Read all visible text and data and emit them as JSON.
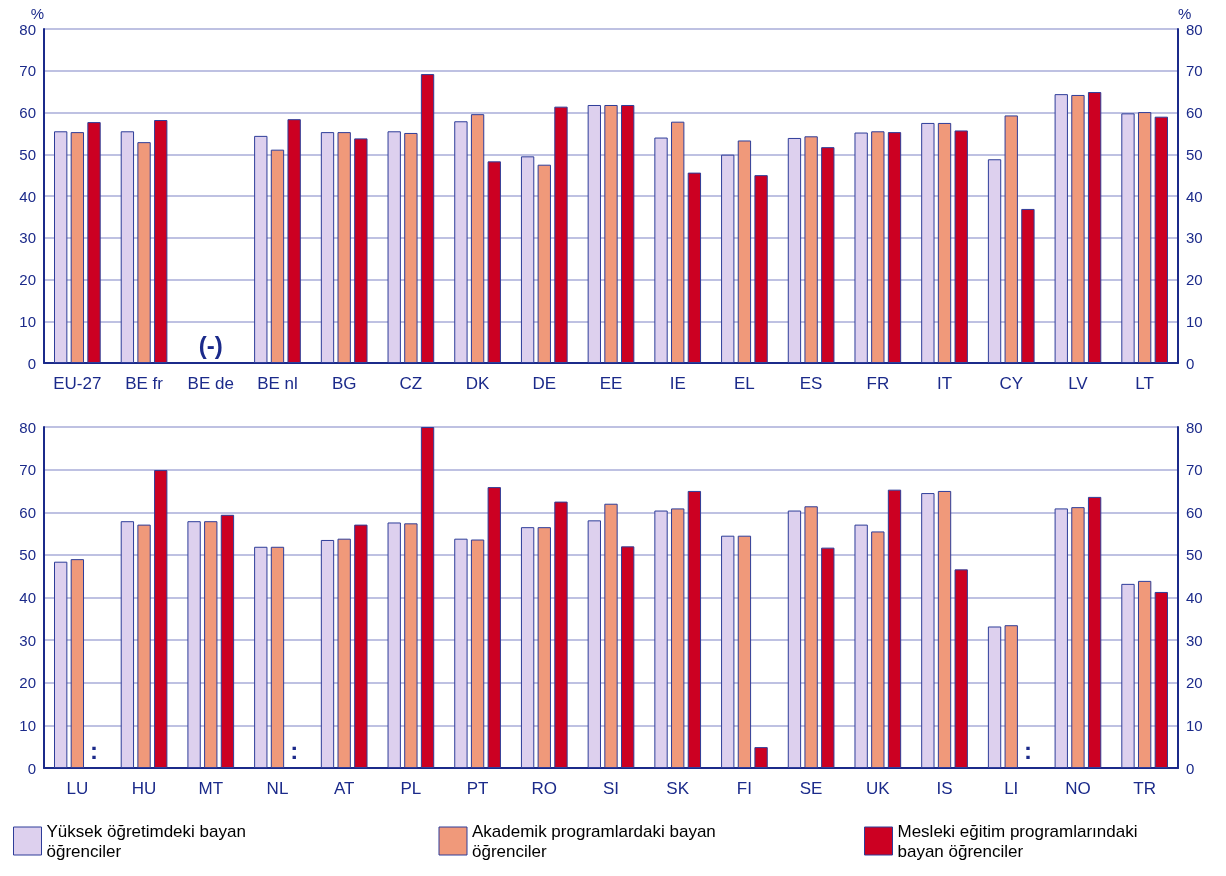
{
  "chart_data": [
    {
      "type": "bar",
      "ylabel": "%",
      "y2label": "%",
      "categories": [
        "EU-27",
        "BE fr",
        "BE de",
        "BE nl",
        "BG",
        "CZ",
        "DK",
        "DE",
        "EE",
        "IE",
        "EL",
        "ES",
        "FR",
        "IT",
        "CY",
        "LV",
        "LT"
      ],
      "series": [
        {
          "color": "#ddd0ee",
          "values": [
            55.5,
            55.5,
            null,
            54.4,
            55.3,
            55.5,
            57.9,
            49.5,
            61.8,
            54.0,
            49.9,
            53.9,
            55.2,
            57.5,
            48.8,
            64.4,
            59.8
          ]
        },
        {
          "color": "#f0997a",
          "values": [
            55.3,
            52.9,
            null,
            51.1,
            55.3,
            55.1,
            59.6,
            47.5,
            61.8,
            57.8,
            53.3,
            54.3,
            55.5,
            57.5,
            59.3,
            64.2,
            60.1
          ]
        },
        {
          "color": "#cc0022",
          "values": [
            57.7,
            58.2,
            null,
            58.4,
            53.8,
            69.2,
            48.3,
            61.4,
            61.8,
            45.6,
            45.0,
            51.7,
            55.3,
            55.7,
            36.9,
            64.9,
            59.0
          ]
        }
      ],
      "ylim": [
        0,
        80
      ],
      "yticks": [
        0,
        10,
        20,
        30,
        40,
        50,
        60,
        70,
        80
      ],
      "y2lim": [
        0,
        80
      ],
      "y2ticks": [
        0,
        10,
        20,
        30,
        40,
        50,
        60,
        70,
        80
      ],
      "grid": "y",
      "legend": false,
      "annotations": [
        "(-)"
      ]
    },
    {
      "type": "bar",
      "categories": [
        "LU",
        "HU",
        "MT",
        "NL",
        "AT",
        "PL",
        "PT",
        "RO",
        "SI",
        "SK",
        "FI",
        "SE",
        "UK",
        "IS",
        "LI",
        "NO",
        "TR"
      ],
      "series": [
        {
          "name": "Yüksek öğretimdeki bayan öğrenciler",
          "color": "#ddd0ee",
          "values": [
            48.4,
            57.9,
            57.9,
            51.9,
            53.5,
            57.6,
            53.8,
            56.5,
            58.1,
            60.4,
            54.5,
            60.4,
            57.1,
            64.5,
            33.2,
            60.9,
            43.2
          ]
        },
        {
          "name": "Akademik programlardaki bayan öğrenciler",
          "color": "#f0997a",
          "values": [
            49.0,
            57.1,
            57.9,
            51.9,
            53.8,
            57.4,
            53.6,
            56.5,
            62.0,
            60.9,
            54.5,
            61.4,
            55.5,
            65.0,
            33.5,
            61.2,
            43.9
          ]
        },
        {
          "name": "Mesleki eğitim programlarındaki bayan öğrenciler",
          "color": "#cc0022",
          "values": [
            null,
            69.9,
            59.4,
            null,
            57.1,
            80,
            65.9,
            62.5,
            52.0,
            65.0,
            4.9,
            51.7,
            65.3,
            46.6,
            null,
            63.6,
            41.3
          ]
        }
      ],
      "ylim": [
        0,
        80
      ],
      "yticks": [
        0,
        10,
        20,
        30,
        40,
        50,
        60,
        70,
        80
      ],
      "y2lim": [
        0,
        80
      ],
      "y2ticks": [
        0,
        10,
        20,
        30,
        40,
        50,
        60,
        70,
        80
      ],
      "grid": "y",
      "legend": "bottom",
      "annotations": [
        ":",
        ":",
        ":"
      ]
    }
  ]
}
